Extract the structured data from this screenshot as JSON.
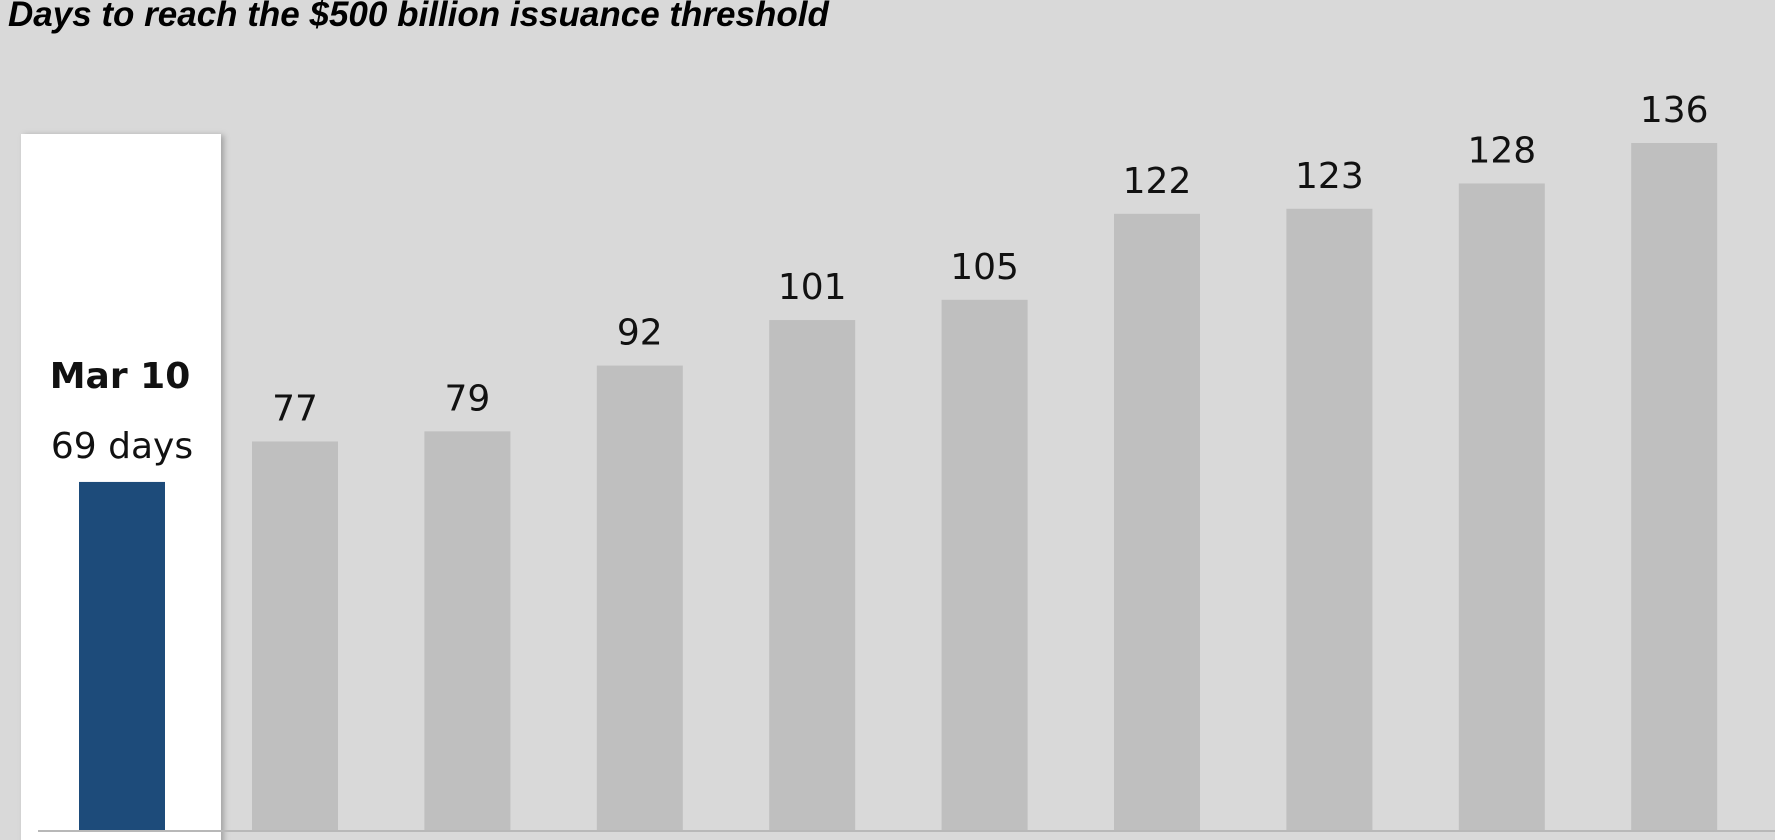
{
  "chart_data": {
    "type": "bar",
    "title": "Days to reach the $500 billion issuance threshold",
    "xlabel": "",
    "ylabel": "",
    "ylim": [
      0,
      136
    ],
    "grid": false,
    "highlight": {
      "label": "Mar 10",
      "value": 69,
      "value_text": "69 days",
      "color": "#1d4b7a"
    },
    "values": [
      77,
      79,
      92,
      101,
      105,
      122,
      123,
      128,
      136
    ],
    "bar_color": "#bfbfbf",
    "background_color": "#d9d9d9",
    "highlight_panel_color": "#ffffff"
  }
}
